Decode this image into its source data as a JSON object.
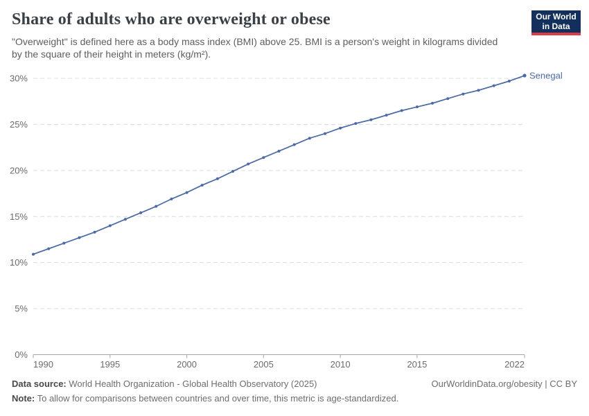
{
  "header": {
    "title": "Share of adults who are overweight or obese",
    "subtitle": "\"Overweight\" is defined here as a body mass index (BMI) above 25. BMI is a person's weight in kilograms divided by the square of their height in meters (kg/m²)."
  },
  "logo": {
    "line1": "Our World",
    "line2": "in Data"
  },
  "chart_data": {
    "type": "line",
    "title": "Share of adults who are overweight or obese",
    "series_label": "Senegal",
    "color": "#4c6aa5",
    "grid": "dashed horizontal gridlines, no vertical gridlines",
    "legend_position": "end-of-line label",
    "xlabel": "",
    "ylabel": "",
    "ylim": [
      0,
      30
    ],
    "yticks": [
      0,
      5,
      10,
      15,
      20,
      25,
      30
    ],
    "ytick_suffix": "%",
    "xticks": [
      1990,
      1995,
      2000,
      2005,
      2010,
      2015,
      2022
    ],
    "x": [
      1990,
      1991,
      1992,
      1993,
      1994,
      1995,
      1996,
      1997,
      1998,
      1999,
      2000,
      2001,
      2002,
      2003,
      2004,
      2005,
      2006,
      2007,
      2008,
      2009,
      2010,
      2011,
      2012,
      2013,
      2014,
      2015,
      2016,
      2017,
      2018,
      2019,
      2020,
      2021,
      2022
    ],
    "series": [
      {
        "name": "Senegal",
        "values": [
          10.9,
          11.5,
          12.1,
          12.7,
          13.3,
          14.0,
          14.7,
          15.4,
          16.1,
          16.9,
          17.6,
          18.4,
          19.1,
          19.9,
          20.7,
          21.4,
          22.1,
          22.8,
          23.5,
          24.0,
          24.6,
          25.1,
          25.5,
          26.0,
          26.5,
          26.9,
          27.3,
          27.8,
          28.3,
          28.7,
          29.2,
          29.7,
          30.3
        ]
      }
    ]
  },
  "footer": {
    "datasource_label": "Data source:",
    "datasource_text": " World Health Organization - Global Health Observatory (2025)",
    "license": "OurWorldinData.org/obesity | CC BY",
    "note_label": "Note:",
    "note_text": " To allow for comparisons between countries and over time, this metric is age-standardized."
  }
}
